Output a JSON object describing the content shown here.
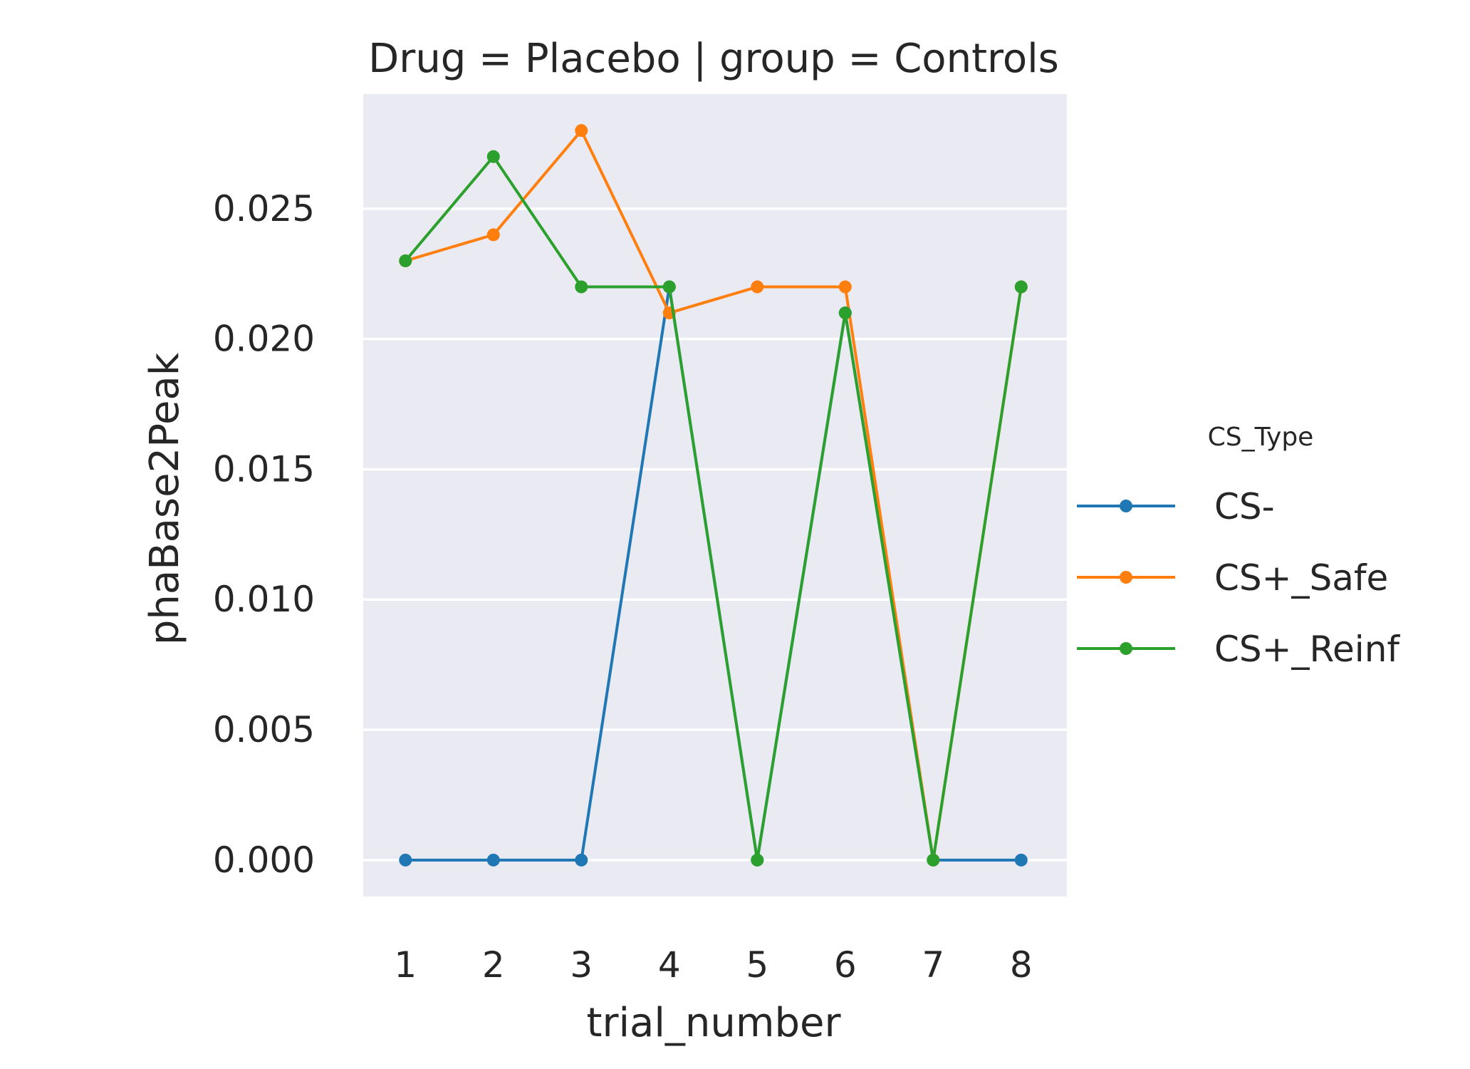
{
  "chart_data": {
    "type": "line",
    "title": "Drug = Placebo | group = Controls",
    "xlabel": "trial_number",
    "ylabel": "phaBase2Peak",
    "x": [
      1,
      2,
      3,
      4,
      5,
      6,
      7,
      8
    ],
    "x_tick_labels": [
      "1",
      "2",
      "3",
      "4",
      "5",
      "6",
      "7",
      "8"
    ],
    "y_ticks": [
      0.0,
      0.005,
      0.01,
      0.015,
      0.02,
      0.025
    ],
    "y_tick_labels": [
      "0.000",
      "0.005",
      "0.010",
      "0.015",
      "0.020",
      "0.025"
    ],
    "ylim": [
      -0.0014,
      0.0294
    ],
    "xlim": [
      0.52,
      8.52
    ],
    "grid": true,
    "legend": {
      "title": "CS_Type",
      "placement": "right"
    },
    "series": [
      {
        "name": "CS-",
        "color": "#1f77b4",
        "values": [
          0.0,
          0.0,
          0.0,
          0.022,
          0.0,
          0.021,
          0.0,
          0.0
        ]
      },
      {
        "name": "CS+_Safe",
        "color": "#ff7f0e",
        "values": [
          0.023,
          0.024,
          0.028,
          0.021,
          0.022,
          0.022,
          0.0,
          0.022
        ]
      },
      {
        "name": "CS+_Reinf",
        "color": "#2ca02c",
        "values": [
          0.023,
          0.027,
          0.022,
          0.022,
          0.0,
          0.021,
          0.0,
          0.022
        ]
      }
    ],
    "colors": {
      "plot_background": "#eaeaf2",
      "grid": "#ffffff",
      "text": "#262626"
    }
  }
}
